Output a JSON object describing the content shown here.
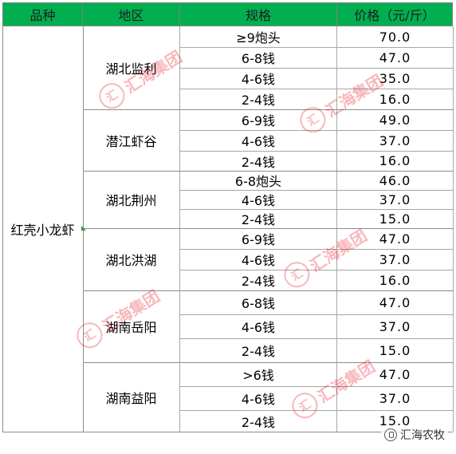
{
  "header": {
    "variety": "品种",
    "region": "地区",
    "spec": "规格",
    "price": "价格（元/斤）"
  },
  "variety": "红壳小龙虾",
  "regions": [
    {
      "name": "湖北监利",
      "rows": [
        {
          "spec": "≥9炮头",
          "price": "70.0"
        },
        {
          "spec": "6-8钱",
          "price": "47.0"
        },
        {
          "spec": "4-6钱",
          "price": "35.0"
        },
        {
          "spec": "2-4钱",
          "price": "16.0"
        }
      ]
    },
    {
      "name": "潜江虾谷",
      "rows": [
        {
          "spec": "6-9钱",
          "price": "49.0"
        },
        {
          "spec": "4-6钱",
          "price": "37.0"
        },
        {
          "spec": "2-4钱",
          "price": "16.0"
        }
      ]
    },
    {
      "name": "湖北荆州",
      "rows": [
        {
          "spec": "6-8炮头",
          "price": "46.0"
        },
        {
          "spec": "4-6钱",
          "price": "37.0"
        },
        {
          "spec": "2-4钱",
          "price": "15.0"
        }
      ]
    },
    {
      "name": "湖北洪湖",
      "rows": [
        {
          "spec": "6-9钱",
          "price": "47.0"
        },
        {
          "spec": "4-6钱",
          "price": "37.0"
        },
        {
          "spec": "2-4钱",
          "price": "16.0"
        }
      ]
    },
    {
      "name": "湖南岳阳",
      "rows": [
        {
          "spec": "6-8钱",
          "price": "47.0"
        },
        {
          "spec": "4-6钱",
          "price": "37.0"
        },
        {
          "spec": "2-4钱",
          "price": "15.0"
        }
      ]
    },
    {
      "name": "湖南益阳",
      "rows": [
        {
          "spec": ">6钱",
          "price": "47.0"
        },
        {
          "spec": "4-6钱",
          "price": "37.0"
        },
        {
          "spec": "2-4钱",
          "price": "15.0"
        }
      ]
    }
  ],
  "watermark_text": "汇海集团",
  "watermark_icon": "huihai-logo-icon",
  "brand_label": "汇海农牧",
  "brand_icon": "wechat-account-icon",
  "colors": {
    "header_bg": "#00b050",
    "watermark": "#e60012",
    "grid": "#a6a6a6"
  }
}
